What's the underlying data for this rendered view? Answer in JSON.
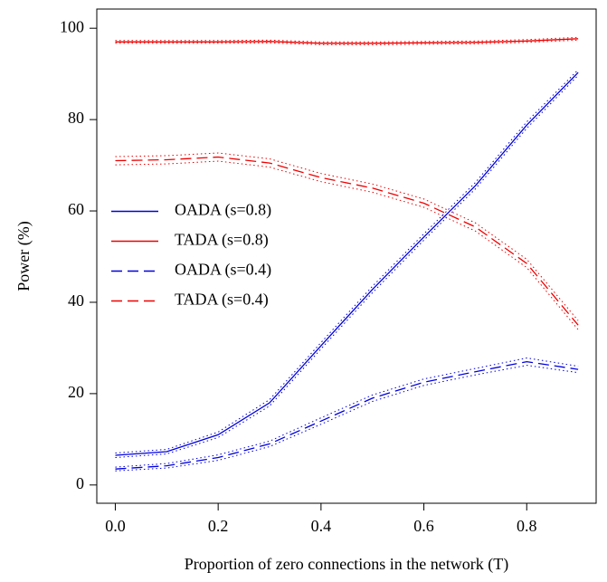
{
  "chart_data": {
    "type": "line",
    "xlabel": "Proportion of zero connections in the network (T)",
    "ylabel": "Power (%)",
    "x": [
      0,
      0.1,
      0.2,
      0.3,
      0.4,
      0.5,
      0.6,
      0.7,
      0.8,
      0.9
    ],
    "xlim": [
      -0.036,
      0.935
    ],
    "ylim": [
      -4,
      104.2
    ],
    "xticks": [
      {
        "value": 0,
        "label": "0.0"
      },
      0.2,
      0.4,
      0.6,
      0.8
    ],
    "yticks": [
      0,
      20,
      40,
      60,
      80,
      100
    ],
    "legend": "center left",
    "series": [
      {
        "name": "OADA (s=0.8)",
        "color": "#0000dd",
        "dash": "solid",
        "values": [
          6.5,
          7.3,
          11,
          18,
          30.5,
          42.8,
          54.3,
          65.5,
          78.8,
          90.3
        ],
        "lower": [
          6.0,
          6.8,
          10.4,
          17.3,
          29.8,
          42.1,
          53.6,
          64.8,
          78.1,
          89.7
        ],
        "upper": [
          7.0,
          7.8,
          11.6,
          18.7,
          31.2,
          43.5,
          55.0,
          66.2,
          79.5,
          90.9
        ]
      },
      {
        "name": "TADA (s=0.8)",
        "color": "#ee0000",
        "dash": "solid",
        "values": [
          97,
          97,
          97,
          97.1,
          96.7,
          96.7,
          96.8,
          96.9,
          97.2,
          97.7
        ],
        "lower": [
          96.7,
          96.7,
          96.7,
          96.8,
          96.4,
          96.4,
          96.5,
          96.6,
          96.9,
          97.4
        ],
        "upper": [
          97.3,
          97.3,
          97.3,
          97.4,
          97.0,
          97.0,
          97.1,
          97.2,
          97.5,
          98.0
        ]
      },
      {
        "name": "OADA (s=0.4)",
        "color": "#0000dd",
        "dash": "dashed",
        "values": [
          3.5,
          4.2,
          6,
          9,
          14,
          19,
          22.5,
          24.8,
          27,
          25.3
        ],
        "lower": [
          3.1,
          3.7,
          5.4,
          8.4,
          13.3,
          18.3,
          21.8,
          24.1,
          26.2,
          24.6
        ],
        "upper": [
          3.9,
          4.7,
          6.6,
          9.6,
          14.7,
          19.7,
          23.2,
          25.5,
          27.8,
          26.0
        ]
      },
      {
        "name": "TADA (s=0.4)",
        "color": "#ee0000",
        "dash": "dashed",
        "values": [
          71,
          71.2,
          71.8,
          70.5,
          67.3,
          65,
          61.7,
          56.5,
          48.5,
          35
        ],
        "lower": [
          70.1,
          70.3,
          70.9,
          69.6,
          66.4,
          64.1,
          60.8,
          55.6,
          47.6,
          34.0
        ],
        "upper": [
          71.9,
          72.1,
          72.7,
          71.4,
          68.2,
          65.9,
          62.6,
          57.4,
          49.4,
          36.0
        ]
      }
    ]
  }
}
